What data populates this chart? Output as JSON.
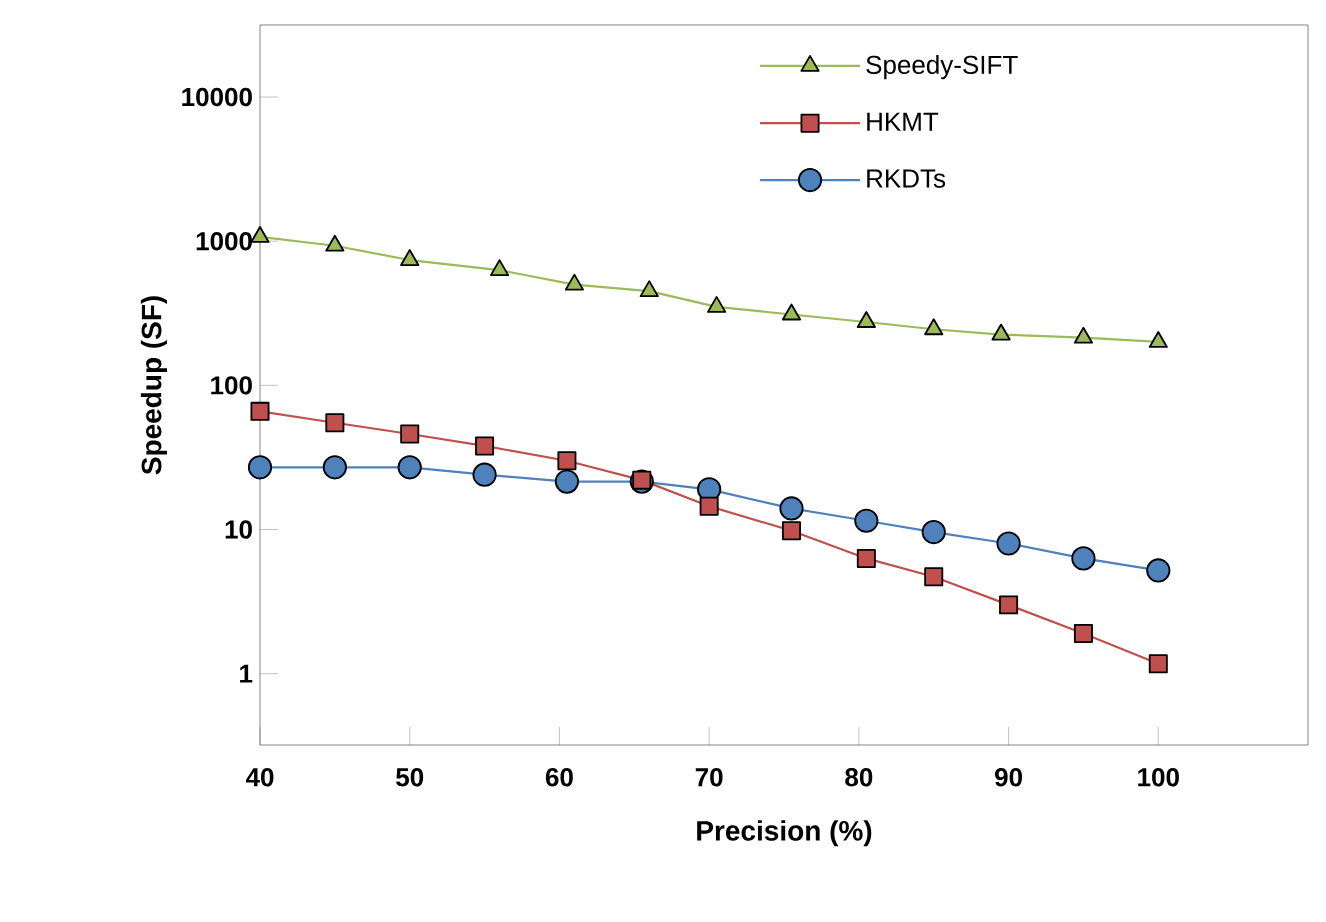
{
  "chart_data": {
    "type": "line",
    "xlabel": "Precision (%)",
    "ylabel": "Speedup (SF)",
    "x": [
      40,
      45,
      50,
      55,
      60.5,
      65.5,
      70,
      75.5,
      80.5,
      85,
      90,
      95,
      100
    ],
    "series": [
      {
        "name": "Speedy-SIFT",
        "color": "#9bbb59",
        "marker": "triangle",
        "x": [
          40,
          45,
          50,
          56,
          61,
          66,
          70.5,
          75.5,
          80.5,
          85,
          89.5,
          95,
          100
        ],
        "values": [
          1070,
          930,
          740,
          630,
          500,
          450,
          350,
          310,
          275,
          245,
          225,
          214,
          200
        ]
      },
      {
        "name": "HKMT",
        "color": "#c0504d",
        "marker": "square",
        "values": [
          66,
          55,
          46,
          38,
          30,
          22,
          14.5,
          9.8,
          6.3,
          4.7,
          3.0,
          1.9,
          1.17
        ]
      },
      {
        "name": "RKDTs",
        "color": "#4f81bd",
        "marker": "circle",
        "values": [
          27,
          27,
          27,
          24,
          21.5,
          21.5,
          19,
          14,
          11.5,
          9.6,
          8,
          6.3,
          5.2
        ]
      }
    ],
    "xlim": [
      40,
      110
    ],
    "xticks": [
      40,
      50,
      60,
      70,
      80,
      90,
      100
    ],
    "ylim": [
      0.32,
      31600
    ],
    "yticks": [
      1,
      10,
      100,
      1000,
      10000
    ],
    "log": "y",
    "grid": false,
    "legend": "top right",
    "line_style": "solid"
  }
}
